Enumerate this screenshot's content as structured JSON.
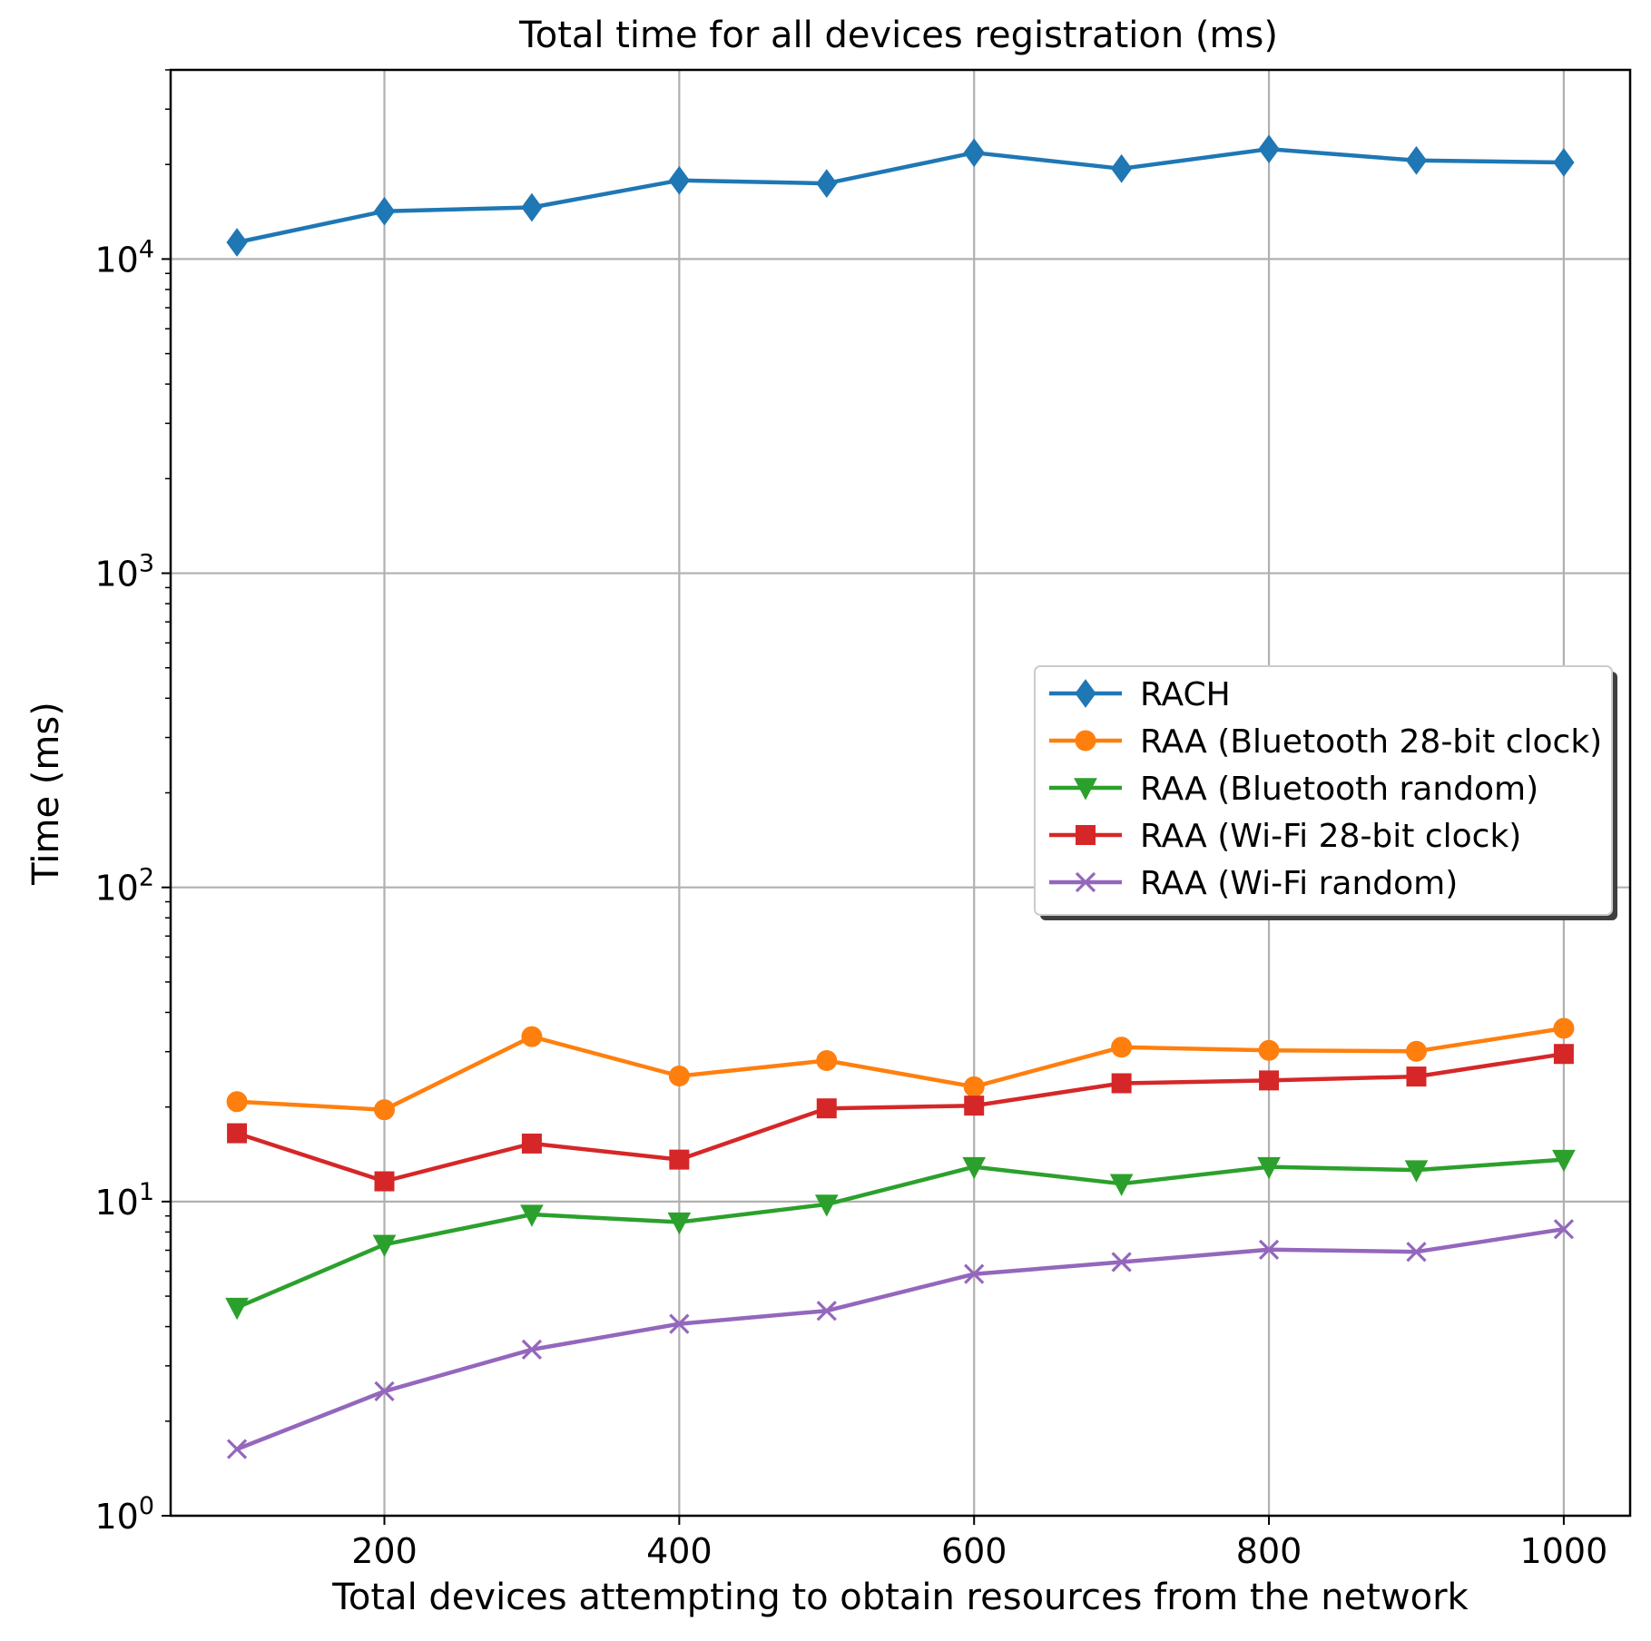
{
  "chart_data": {
    "type": "line",
    "title": "Total time for all devices registration (ms)",
    "xlabel": "Total devices attempting to obtain resources from the network",
    "ylabel": "Time (ms)",
    "x": [
      100,
      200,
      300,
      400,
      500,
      600,
      700,
      800,
      900,
      1000
    ],
    "xlim": [
      55,
      1045
    ],
    "ylim": [
      1,
      40000
    ],
    "yscale": "log",
    "grid": true,
    "legend_position": "center-right",
    "x_ticks": [
      {
        "value": 200,
        "label": "200"
      },
      {
        "value": 400,
        "label": "400"
      },
      {
        "value": 600,
        "label": "600"
      },
      {
        "value": 800,
        "label": "800"
      },
      {
        "value": 1000,
        "label": "1000"
      }
    ],
    "y_ticks": [
      {
        "value": 1,
        "base": "10",
        "exp": "0"
      },
      {
        "value": 10,
        "base": "10",
        "exp": "1"
      },
      {
        "value": 100,
        "base": "10",
        "exp": "2"
      },
      {
        "value": 1000,
        "base": "10",
        "exp": "3"
      },
      {
        "value": 10000,
        "base": "10",
        "exp": "4"
      }
    ],
    "series": [
      {
        "name": "RACH",
        "color": "#1f77b4",
        "marker": "diamond",
        "values": [
          11300,
          14200,
          14600,
          17800,
          17400,
          21800,
          19400,
          22400,
          20600,
          20300
        ]
      },
      {
        "name": "RAA (Bluetooth 28-bit clock)",
        "color": "#ff7f0e",
        "marker": "circle",
        "values": [
          20.8,
          19.6,
          33.5,
          25.1,
          28.1,
          23.2,
          31.0,
          30.3,
          30.1,
          35.6
        ]
      },
      {
        "name": "RAA (Bluetooth random)",
        "color": "#2ca02c",
        "marker": "triangle-down",
        "values": [
          4.6,
          7.3,
          9.1,
          8.6,
          9.8,
          12.9,
          11.4,
          12.9,
          12.6,
          13.6
        ]
      },
      {
        "name": "RAA (Wi-Fi 28-bit clock)",
        "color": "#d62728",
        "marker": "square",
        "values": [
          16.5,
          11.6,
          15.3,
          13.6,
          19.8,
          20.2,
          23.8,
          24.3,
          25.0,
          29.5
        ]
      },
      {
        "name": "RAA (Wi-Fi random)",
        "color": "#9467bd",
        "marker": "x",
        "values": [
          1.63,
          2.49,
          3.38,
          4.08,
          4.49,
          5.88,
          6.42,
          7.03,
          6.92,
          8.17
        ]
      }
    ]
  }
}
